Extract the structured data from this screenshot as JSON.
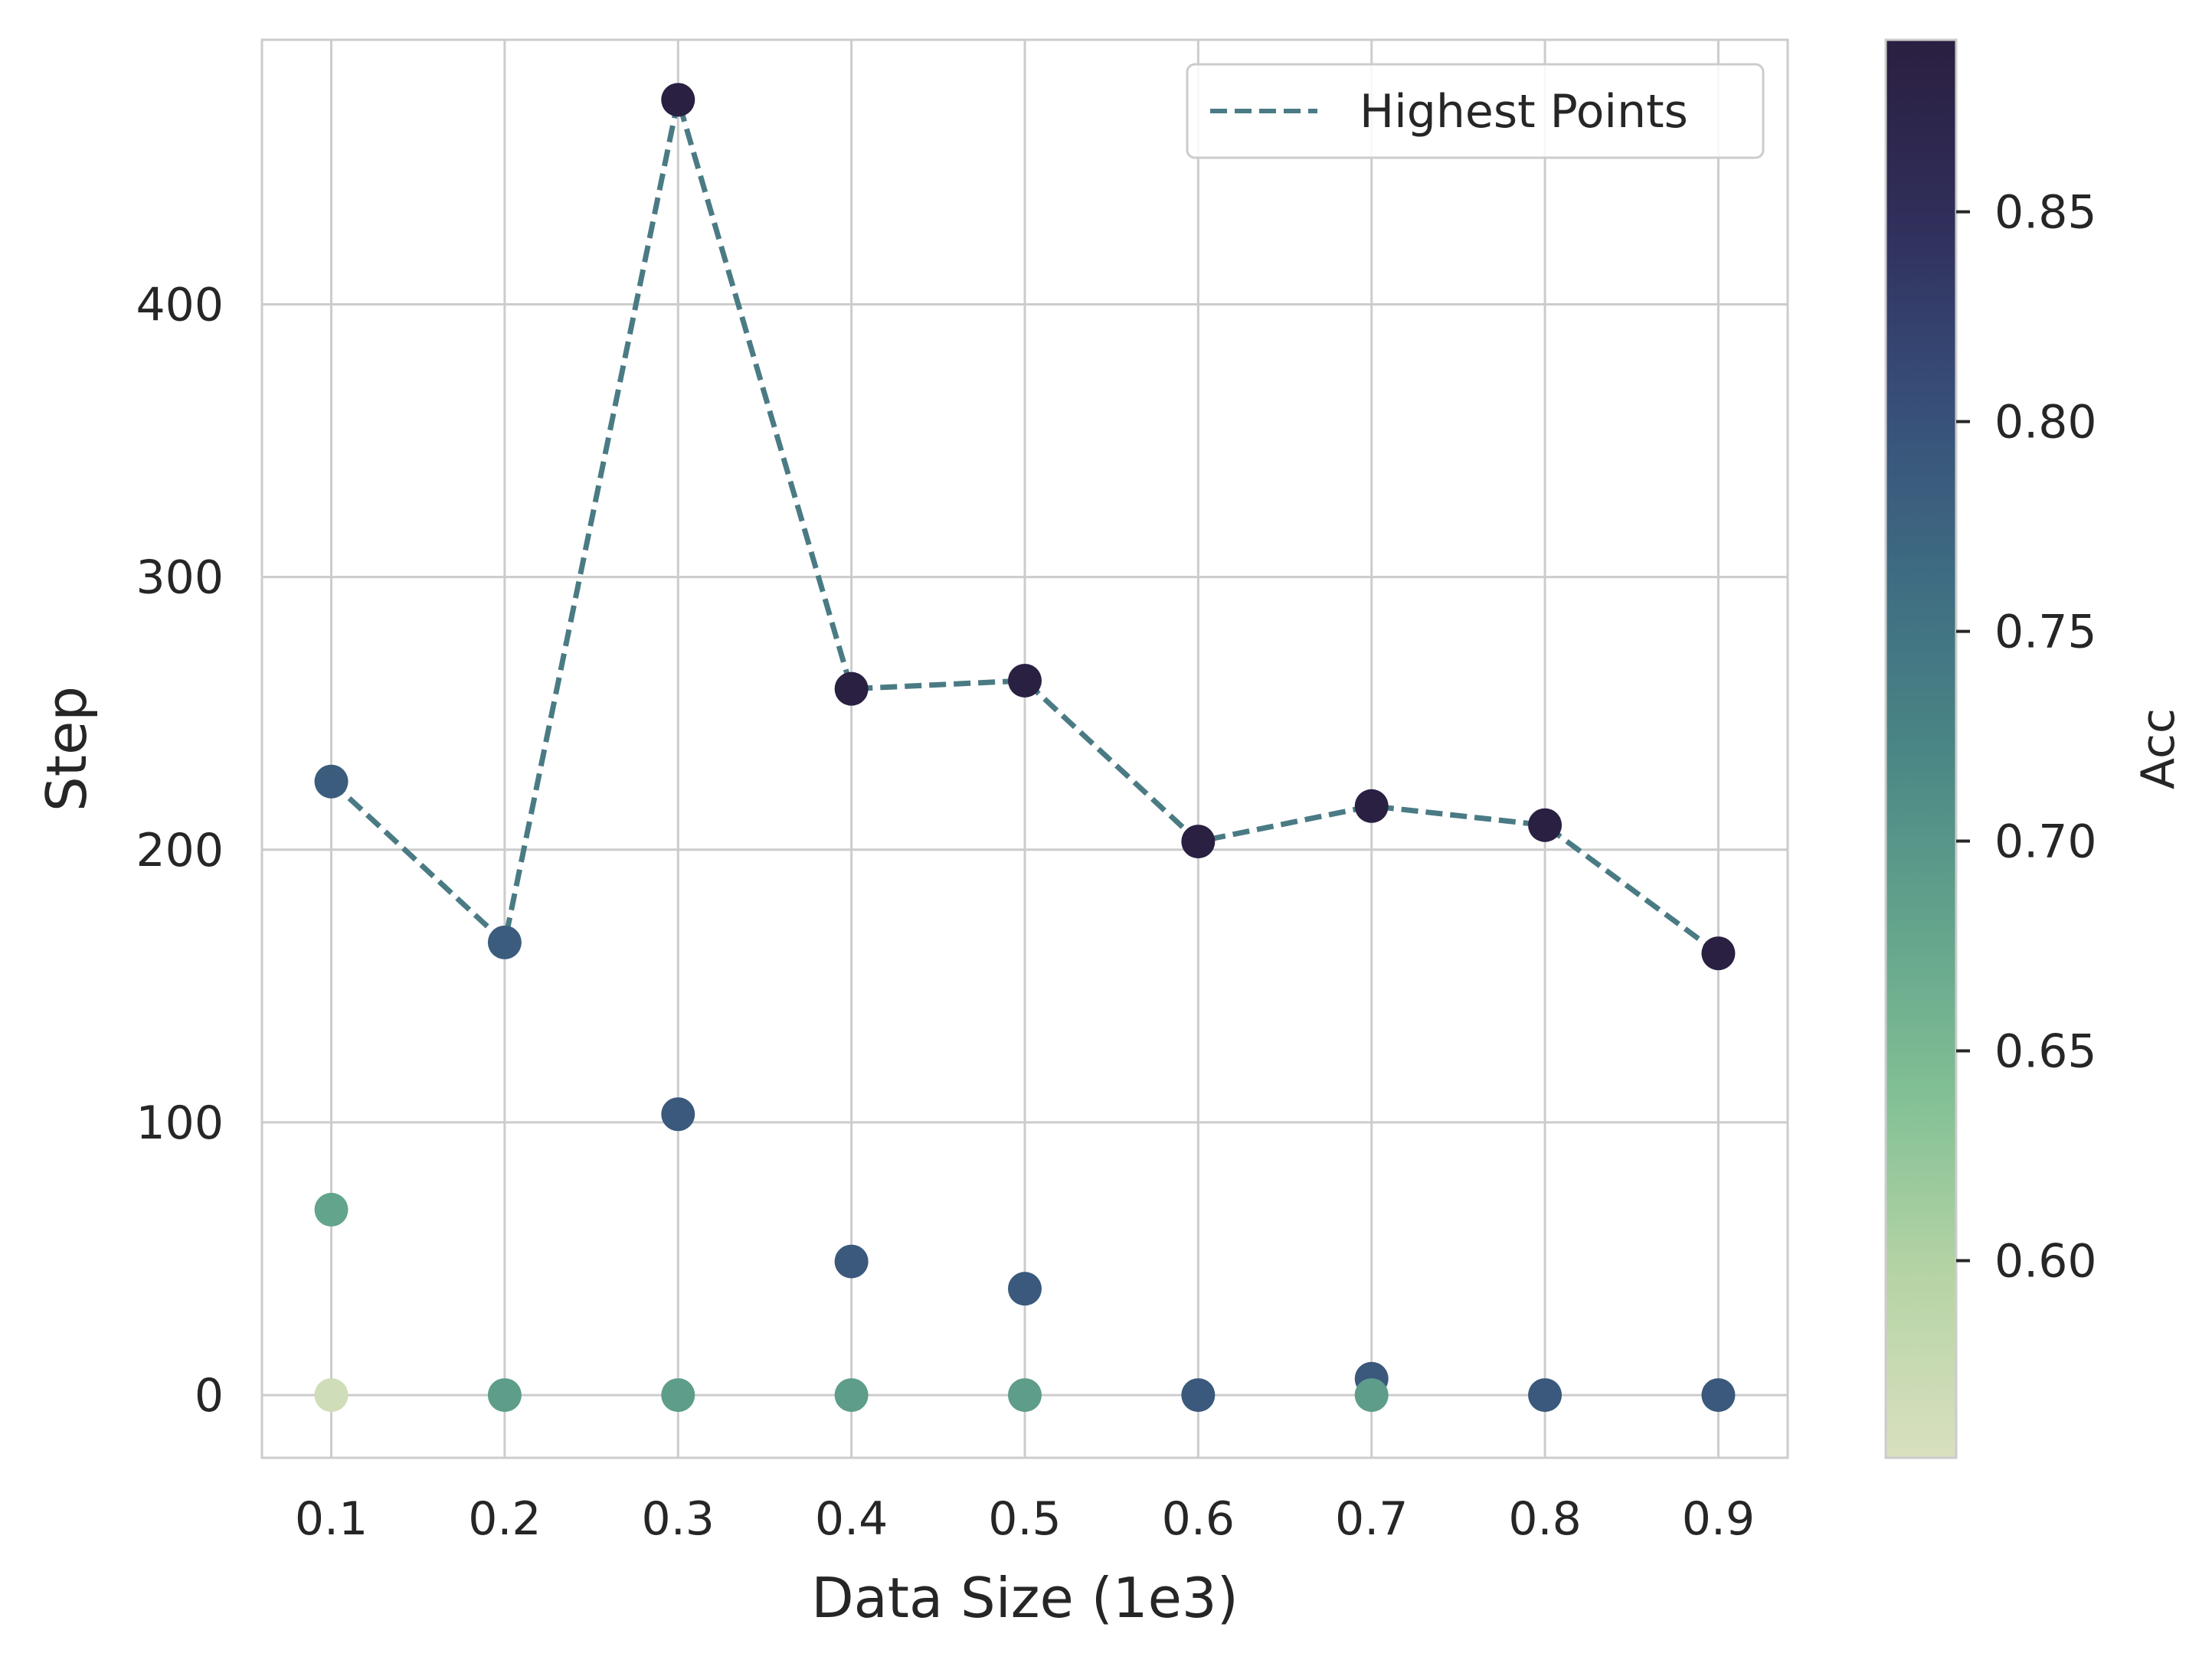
{
  "chart_data": {
    "type": "scatter",
    "xlabel": "Data Size (1e3)",
    "ylabel": "Step",
    "x_ticks": [
      "0.1",
      "0.2",
      "0.3",
      "0.4",
      "0.5",
      "0.6",
      "0.7",
      "0.8",
      "0.9"
    ],
    "y_ticks": [
      "0",
      "100",
      "200",
      "300",
      "400"
    ],
    "xlim": [
      0.06,
      0.94
    ],
    "ylim": [
      -23,
      497
    ],
    "grid": true,
    "legend": {
      "position": "top-right",
      "entries": [
        "Highest Points"
      ]
    },
    "colorbar": {
      "label": "Acc",
      "range": [
        0.553,
        0.891
      ],
      "ticks": [
        "0.60",
        "0.65",
        "0.70",
        "0.75",
        "0.80",
        "0.85"
      ],
      "tick_values": [
        0.6,
        0.65,
        0.7,
        0.75,
        0.8,
        0.85
      ],
      "colormap": [
        "#d9e0bf",
        "#b7d4a6",
        "#84c195",
        "#63a48c",
        "#4a8685",
        "#3e6b82",
        "#374d78",
        "#302e5a",
        "#2a1f40"
      ]
    },
    "points": [
      {
        "x": 0.1,
        "y": 225,
        "acc": 0.785
      },
      {
        "x": 0.1,
        "y": 68,
        "acc": 0.68
      },
      {
        "x": 0.1,
        "y": 0,
        "acc": 0.565
      },
      {
        "x": 0.2,
        "y": 166,
        "acc": 0.785
      },
      {
        "x": 0.2,
        "y": 0,
        "acc": 0.69
      },
      {
        "x": 0.3,
        "y": 475,
        "acc": 0.888
      },
      {
        "x": 0.3,
        "y": 103,
        "acc": 0.79
      },
      {
        "x": 0.3,
        "y": 0,
        "acc": 0.69
      },
      {
        "x": 0.4,
        "y": 259,
        "acc": 0.888
      },
      {
        "x": 0.4,
        "y": 49,
        "acc": 0.79
      },
      {
        "x": 0.4,
        "y": 0,
        "acc": 0.69
      },
      {
        "x": 0.5,
        "y": 262,
        "acc": 0.888
      },
      {
        "x": 0.5,
        "y": 39,
        "acc": 0.79
      },
      {
        "x": 0.5,
        "y": 0,
        "acc": 0.69
      },
      {
        "x": 0.6,
        "y": 203,
        "acc": 0.888
      },
      {
        "x": 0.6,
        "y": 0,
        "acc": 0.79
      },
      {
        "x": 0.7,
        "y": 216,
        "acc": 0.888
      },
      {
        "x": 0.7,
        "y": 6,
        "acc": 0.79
      },
      {
        "x": 0.7,
        "y": 0,
        "acc": 0.69
      },
      {
        "x": 0.8,
        "y": 209,
        "acc": 0.888
      },
      {
        "x": 0.8,
        "y": 0,
        "acc": 0.79
      },
      {
        "x": 0.9,
        "y": 162,
        "acc": 0.888
      },
      {
        "x": 0.9,
        "y": 0,
        "acc": 0.79
      }
    ],
    "series": [
      {
        "name": "Highest Points",
        "style": "dashed",
        "color": "#4a7b84",
        "x": [
          0.1,
          0.2,
          0.3,
          0.4,
          0.5,
          0.6,
          0.7,
          0.8,
          0.9
        ],
        "y": [
          225,
          166,
          475,
          259,
          262,
          203,
          216,
          209,
          162
        ]
      }
    ]
  }
}
